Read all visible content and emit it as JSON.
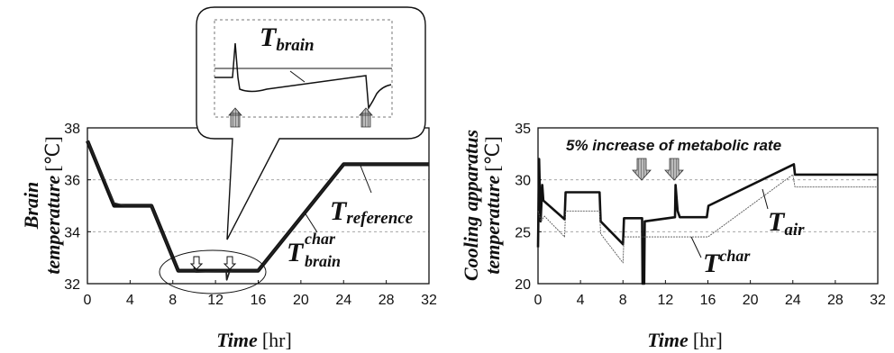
{
  "chart_data": [
    {
      "type": "line",
      "xlabel": "Time",
      "xunit": "[hr]",
      "ylabel_line1": "Brain",
      "ylabel_line2": "temperature",
      "yunit": "[℃]",
      "xlim": [
        0,
        32
      ],
      "ylim": [
        32,
        38
      ],
      "xticks": [
        0,
        4,
        8,
        12,
        16,
        20,
        24,
        28,
        32
      ],
      "yticks": [
        32,
        34,
        36,
        38
      ],
      "series": [
        {
          "name": "T reference",
          "x": [
            0,
            2.5,
            3.5,
            6,
            8.5,
            14,
            16,
            24,
            32
          ],
          "y": [
            37.5,
            35.0,
            35.0,
            35.0,
            32.5,
            32.5,
            32.5,
            36.6,
            36.6
          ]
        },
        {
          "name": "T brain char",
          "x": [
            0,
            2.5,
            3.5,
            6,
            8.5,
            10,
            10.05,
            10.15,
            10.3,
            13,
            13.05,
            13.3,
            13.6,
            14,
            16,
            24,
            32
          ],
          "y": [
            37.5,
            35.1,
            35.0,
            35.0,
            32.5,
            32.5,
            32.85,
            32.45,
            32.45,
            32.5,
            32.15,
            32.45,
            32.5,
            32.5,
            32.5,
            36.6,
            36.6
          ]
        }
      ],
      "annotations": {
        "t_reference": {
          "main": "T",
          "sub": "reference"
        },
        "t_brain_char": {
          "main": "T",
          "sup": "char",
          "sub": "brain"
        }
      },
      "inset": {
        "label": {
          "main": "T",
          "sub": "brain"
        },
        "arrows_at_hr": [
          10,
          13
        ]
      }
    },
    {
      "type": "line",
      "xlabel": "Time",
      "xunit": "[hr]",
      "ylabel_line1": "Cooling apparatus",
      "ylabel_line2": "temperature",
      "yunit": "[℃]",
      "xlim": [
        0,
        32
      ],
      "ylim": [
        20,
        35
      ],
      "xticks": [
        0,
        4,
        8,
        12,
        16,
        20,
        24,
        28,
        32
      ],
      "yticks": [
        20,
        25,
        30,
        35
      ],
      "annotation": "5% increase of metabolic rate",
      "arrows_at_hr": [
        10,
        13
      ],
      "series": [
        {
          "name": "T air",
          "x": [
            0,
            0.1,
            0.25,
            0.4,
            0.5,
            2.5,
            2.6,
            5.8,
            5.9,
            8,
            8.1,
            9.8,
            9.85,
            10.0,
            10.05,
            12.9,
            12.95,
            13.15,
            13.35,
            15.9,
            16.05,
            24.1,
            24.2,
            32
          ],
          "y": [
            23.5,
            32.0,
            26.0,
            29.5,
            28.0,
            26.2,
            28.8,
            28.8,
            26.0,
            23.8,
            26.3,
            26.3,
            20.0,
            20.0,
            26.0,
            26.4,
            29.5,
            27.0,
            26.4,
            26.4,
            27.5,
            31.5,
            30.5,
            30.5
          ]
        },
        {
          "name": "T char",
          "x": [
            0,
            0.3,
            0.6,
            2.5,
            2.6,
            5.8,
            5.9,
            8,
            8.1,
            10,
            16,
            24,
            24.2,
            32
          ],
          "y": [
            27.0,
            26.0,
            26.5,
            24.5,
            27.0,
            27.0,
            24.8,
            22.0,
            24.5,
            24.5,
            24.5,
            30.5,
            29.3,
            29.3
          ]
        }
      ],
      "labels": {
        "t_air": {
          "main": "T",
          "sub": "air"
        },
        "t_char": {
          "main": "T",
          "sup": "char"
        }
      }
    }
  ]
}
